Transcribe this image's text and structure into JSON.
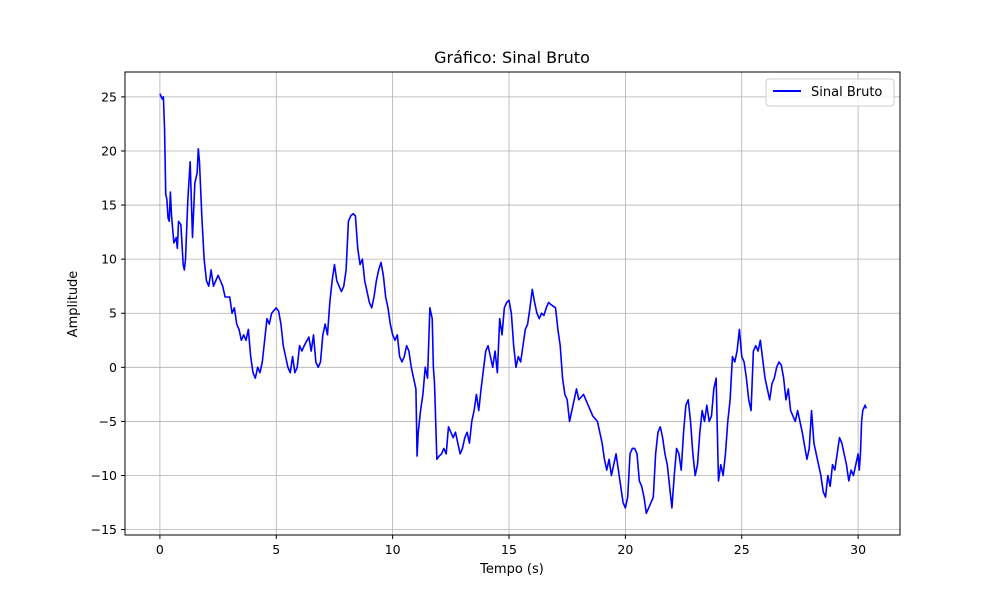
{
  "chart_data": {
    "type": "line",
    "title": "Gráfico: Sinal Bruto",
    "xlabel": "Tempo (s)",
    "ylabel": "Amplitude",
    "xlim": [
      -1.5,
      31.8
    ],
    "ylim": [
      -15.5,
      27.3
    ],
    "xticks": [
      0,
      5,
      10,
      15,
      20,
      25,
      30
    ],
    "yticks": [
      -15,
      -10,
      -5,
      0,
      5,
      10,
      15,
      20,
      25
    ],
    "grid": true,
    "legend_position": "top-right",
    "colors": {
      "series": "#0000ff"
    },
    "series": [
      {
        "name": "Sinal Bruto",
        "points": [
          [
            0.0,
            25.3
          ],
          [
            0.1,
            24.8
          ],
          [
            0.15,
            25.0
          ],
          [
            0.2,
            22.0
          ],
          [
            0.25,
            16.0
          ],
          [
            0.3,
            15.5
          ],
          [
            0.35,
            13.8
          ],
          [
            0.4,
            13.5
          ],
          [
            0.45,
            16.2
          ],
          [
            0.5,
            14.0
          ],
          [
            0.6,
            11.5
          ],
          [
            0.7,
            12.0
          ],
          [
            0.75,
            11.0
          ],
          [
            0.8,
            13.5
          ],
          [
            0.9,
            13.2
          ],
          [
            1.0,
            9.5
          ],
          [
            1.05,
            9.0
          ],
          [
            1.1,
            10.0
          ],
          [
            1.2,
            15.5
          ],
          [
            1.3,
            19.0
          ],
          [
            1.35,
            15.5
          ],
          [
            1.4,
            12.0
          ],
          [
            1.5,
            17.0
          ],
          [
            1.6,
            18.0
          ],
          [
            1.65,
            20.2
          ],
          [
            1.7,
            19.0
          ],
          [
            1.8,
            14.0
          ],
          [
            1.9,
            10.0
          ],
          [
            2.0,
            8.0
          ],
          [
            2.1,
            7.5
          ],
          [
            2.2,
            9.0
          ],
          [
            2.3,
            7.5
          ],
          [
            2.5,
            8.5
          ],
          [
            2.7,
            7.5
          ],
          [
            2.8,
            6.5
          ],
          [
            3.0,
            6.5
          ],
          [
            3.1,
            5.0
          ],
          [
            3.2,
            5.5
          ],
          [
            3.3,
            4.0
          ],
          [
            3.4,
            3.5
          ],
          [
            3.5,
            2.5
          ],
          [
            3.6,
            3.0
          ],
          [
            3.7,
            2.5
          ],
          [
            3.8,
            3.5
          ],
          [
            3.9,
            1.0
          ],
          [
            4.0,
            -0.5
          ],
          [
            4.1,
            -1.0
          ],
          [
            4.2,
            0.0
          ],
          [
            4.3,
            -0.5
          ],
          [
            4.4,
            0.5
          ],
          [
            4.5,
            2.5
          ],
          [
            4.6,
            4.5
          ],
          [
            4.7,
            4.0
          ],
          [
            4.8,
            5.0
          ],
          [
            5.0,
            5.5
          ],
          [
            5.1,
            5.2
          ],
          [
            5.2,
            4.0
          ],
          [
            5.3,
            2.0
          ],
          [
            5.4,
            1.0
          ],
          [
            5.5,
            0.0
          ],
          [
            5.6,
            -0.5
          ],
          [
            5.7,
            1.0
          ],
          [
            5.8,
            -0.5
          ],
          [
            5.9,
            0.0
          ],
          [
            6.0,
            2.0
          ],
          [
            6.1,
            1.5
          ],
          [
            6.2,
            2.0
          ],
          [
            6.4,
            2.8
          ],
          [
            6.5,
            1.5
          ],
          [
            6.6,
            3.0
          ],
          [
            6.7,
            0.5
          ],
          [
            6.8,
            0.0
          ],
          [
            6.9,
            0.5
          ],
          [
            7.0,
            3.0
          ],
          [
            7.1,
            4.0
          ],
          [
            7.2,
            3.0
          ],
          [
            7.3,
            6.0
          ],
          [
            7.4,
            8.0
          ],
          [
            7.5,
            9.5
          ],
          [
            7.6,
            8.0
          ],
          [
            7.7,
            7.5
          ],
          [
            7.8,
            7.0
          ],
          [
            7.9,
            7.5
          ],
          [
            8.0,
            9.0
          ],
          [
            8.1,
            13.5
          ],
          [
            8.2,
            14.0
          ],
          [
            8.3,
            14.2
          ],
          [
            8.4,
            14.0
          ],
          [
            8.5,
            11.0
          ],
          [
            8.6,
            9.5
          ],
          [
            8.7,
            10.0
          ],
          [
            8.8,
            8.0
          ],
          [
            8.9,
            7.0
          ],
          [
            9.0,
            6.0
          ],
          [
            9.1,
            5.5
          ],
          [
            9.2,
            6.5
          ],
          [
            9.3,
            8.0
          ],
          [
            9.4,
            9.0
          ],
          [
            9.5,
            9.7
          ],
          [
            9.6,
            8.5
          ],
          [
            9.7,
            6.5
          ],
          [
            9.8,
            5.5
          ],
          [
            9.9,
            4.0
          ],
          [
            10.0,
            3.0
          ],
          [
            10.1,
            2.5
          ],
          [
            10.2,
            3.0
          ],
          [
            10.3,
            1.0
          ],
          [
            10.4,
            0.5
          ],
          [
            10.5,
            1.0
          ],
          [
            10.6,
            2.0
          ],
          [
            10.7,
            1.5
          ],
          [
            10.8,
            0.0
          ],
          [
            10.9,
            -1.0
          ],
          [
            11.0,
            -2.0
          ],
          [
            11.05,
            -8.2
          ],
          [
            11.1,
            -6.0
          ],
          [
            11.2,
            -4.0
          ],
          [
            11.3,
            -2.5
          ],
          [
            11.4,
            0.0
          ],
          [
            11.5,
            -1.0
          ],
          [
            11.6,
            5.5
          ],
          [
            11.7,
            4.5
          ],
          [
            11.75,
            0.0
          ],
          [
            11.8,
            -1.5
          ],
          [
            11.9,
            -8.5
          ],
          [
            12.0,
            -8.2
          ],
          [
            12.1,
            -8.0
          ],
          [
            12.2,
            -7.5
          ],
          [
            12.3,
            -8.0
          ],
          [
            12.4,
            -5.5
          ],
          [
            12.5,
            -6.0
          ],
          [
            12.6,
            -6.5
          ],
          [
            12.7,
            -6.0
          ],
          [
            12.8,
            -7.0
          ],
          [
            12.9,
            -8.0
          ],
          [
            13.0,
            -7.5
          ],
          [
            13.1,
            -6.5
          ],
          [
            13.2,
            -6.0
          ],
          [
            13.3,
            -7.0
          ],
          [
            13.4,
            -5.0
          ],
          [
            13.5,
            -4.0
          ],
          [
            13.6,
            -2.5
          ],
          [
            13.7,
            -4.0
          ],
          [
            13.8,
            -2.0
          ],
          [
            14.0,
            1.5
          ],
          [
            14.1,
            2.0
          ],
          [
            14.2,
            1.0
          ],
          [
            14.3,
            0.0
          ],
          [
            14.4,
            1.5
          ],
          [
            14.5,
            -0.5
          ],
          [
            14.6,
            4.5
          ],
          [
            14.7,
            3.0
          ],
          [
            14.8,
            5.5
          ],
          [
            14.9,
            6.0
          ],
          [
            15.0,
            6.2
          ],
          [
            15.1,
            5.0
          ],
          [
            15.2,
            2.0
          ],
          [
            15.3,
            0.0
          ],
          [
            15.4,
            1.0
          ],
          [
            15.5,
            0.5
          ],
          [
            15.6,
            2.0
          ],
          [
            15.7,
            3.5
          ],
          [
            15.8,
            4.0
          ],
          [
            15.9,
            5.5
          ],
          [
            16.0,
            7.2
          ],
          [
            16.1,
            6.0
          ],
          [
            16.2,
            5.0
          ],
          [
            16.3,
            4.5
          ],
          [
            16.4,
            5.0
          ],
          [
            16.5,
            4.8
          ],
          [
            16.6,
            5.5
          ],
          [
            16.7,
            6.0
          ],
          [
            16.8,
            5.8
          ],
          [
            17.0,
            5.5
          ],
          [
            17.1,
            3.5
          ],
          [
            17.2,
            2.0
          ],
          [
            17.3,
            -1.0
          ],
          [
            17.4,
            -2.5
          ],
          [
            17.5,
            -3.0
          ],
          [
            17.6,
            -5.0
          ],
          [
            17.7,
            -4.0
          ],
          [
            17.8,
            -3.0
          ],
          [
            17.9,
            -2.0
          ],
          [
            18.0,
            -3.0
          ],
          [
            18.2,
            -2.5
          ],
          [
            18.4,
            -3.5
          ],
          [
            18.6,
            -4.5
          ],
          [
            18.8,
            -5.0
          ],
          [
            19.0,
            -7.0
          ],
          [
            19.1,
            -8.5
          ],
          [
            19.2,
            -9.5
          ],
          [
            19.3,
            -8.5
          ],
          [
            19.4,
            -10.0
          ],
          [
            19.5,
            -9.0
          ],
          [
            19.6,
            -8.0
          ],
          [
            19.7,
            -9.5
          ],
          [
            19.8,
            -11.0
          ],
          [
            19.9,
            -12.5
          ],
          [
            20.0,
            -13.0
          ],
          [
            20.1,
            -12.0
          ],
          [
            20.2,
            -8.0
          ],
          [
            20.3,
            -7.5
          ],
          [
            20.4,
            -7.5
          ],
          [
            20.5,
            -8.0
          ],
          [
            20.6,
            -10.5
          ],
          [
            20.7,
            -11.0
          ],
          [
            20.8,
            -12.0
          ],
          [
            20.9,
            -13.5
          ],
          [
            21.0,
            -13.0
          ],
          [
            21.2,
            -12.0
          ],
          [
            21.3,
            -8.0
          ],
          [
            21.4,
            -6.0
          ],
          [
            21.5,
            -5.5
          ],
          [
            21.6,
            -6.5
          ],
          [
            21.7,
            -8.0
          ],
          [
            21.8,
            -9.0
          ],
          [
            21.9,
            -11.0
          ],
          [
            22.0,
            -13.0
          ],
          [
            22.1,
            -10.0
          ],
          [
            22.2,
            -7.5
          ],
          [
            22.3,
            -8.0
          ],
          [
            22.4,
            -9.5
          ],
          [
            22.5,
            -6.0
          ],
          [
            22.6,
            -3.5
          ],
          [
            22.7,
            -3.0
          ],
          [
            22.8,
            -5.0
          ],
          [
            22.9,
            -8.0
          ],
          [
            23.0,
            -10.0
          ],
          [
            23.1,
            -9.0
          ],
          [
            23.2,
            -6.0
          ],
          [
            23.3,
            -4.0
          ],
          [
            23.4,
            -5.0
          ],
          [
            23.5,
            -3.5
          ],
          [
            23.6,
            -5.0
          ],
          [
            23.7,
            -4.5
          ],
          [
            23.8,
            -2.0
          ],
          [
            23.9,
            -1.0
          ],
          [
            24.0,
            -10.5
          ],
          [
            24.1,
            -9.0
          ],
          [
            24.2,
            -10.0
          ],
          [
            24.3,
            -8.0
          ],
          [
            24.4,
            -5.0
          ],
          [
            24.5,
            -3.0
          ],
          [
            24.6,
            1.0
          ],
          [
            24.7,
            0.5
          ],
          [
            24.8,
            1.5
          ],
          [
            24.9,
            3.5
          ],
          [
            25.0,
            1.0
          ],
          [
            25.1,
            0.5
          ],
          [
            25.2,
            -1.0
          ],
          [
            25.3,
            -3.0
          ],
          [
            25.4,
            -4.0
          ],
          [
            25.5,
            1.5
          ],
          [
            25.6,
            2.0
          ],
          [
            25.7,
            1.5
          ],
          [
            25.8,
            2.5
          ],
          [
            26.0,
            -1.0
          ],
          [
            26.1,
            -2.0
          ],
          [
            26.2,
            -3.0
          ],
          [
            26.3,
            -1.5
          ],
          [
            26.4,
            -1.0
          ],
          [
            26.5,
            0.0
          ],
          [
            26.6,
            0.5
          ],
          [
            26.7,
            0.2
          ],
          [
            26.8,
            -1.0
          ],
          [
            26.9,
            -3.0
          ],
          [
            27.0,
            -2.0
          ],
          [
            27.1,
            -4.0
          ],
          [
            27.3,
            -5.0
          ],
          [
            27.4,
            -4.0
          ],
          [
            27.6,
            -6.0
          ],
          [
            27.8,
            -8.5
          ],
          [
            27.9,
            -7.5
          ],
          [
            28.0,
            -4.0
          ],
          [
            28.1,
            -7.0
          ],
          [
            28.2,
            -8.0
          ],
          [
            28.3,
            -9.0
          ],
          [
            28.4,
            -10.0
          ],
          [
            28.5,
            -11.5
          ],
          [
            28.6,
            -12.0
          ],
          [
            28.7,
            -10.0
          ],
          [
            28.8,
            -11.0
          ],
          [
            28.9,
            -9.0
          ],
          [
            29.0,
            -9.5
          ],
          [
            29.1,
            -8.0
          ],
          [
            29.2,
            -6.5
          ],
          [
            29.3,
            -7.0
          ],
          [
            29.4,
            -8.0
          ],
          [
            29.5,
            -9.0
          ],
          [
            29.6,
            -10.5
          ],
          [
            29.7,
            -9.5
          ],
          [
            29.8,
            -10.0
          ],
          [
            29.9,
            -9.0
          ],
          [
            30.0,
            -8.0
          ],
          [
            30.05,
            -9.5
          ],
          [
            30.1,
            -8.0
          ],
          [
            30.15,
            -5.0
          ],
          [
            30.2,
            -4.0
          ],
          [
            30.3,
            -3.5
          ],
          [
            30.35,
            -3.8
          ]
        ]
      }
    ]
  }
}
